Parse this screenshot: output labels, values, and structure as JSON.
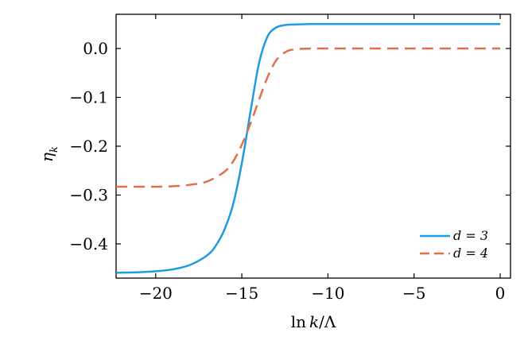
{
  "chart_data": {
    "type": "line",
    "title": "",
    "xlabel": "ln k/Λ",
    "ylabel": "η_k",
    "xlim": [
      -22.3,
      0.6
    ],
    "ylim": [
      -0.47,
      0.07
    ],
    "x_ticks": [
      -20,
      -15,
      -10,
      -5,
      0
    ],
    "x_tick_labels": [
      "−20",
      "−15",
      "−10",
      "−5",
      "0"
    ],
    "y_ticks": [
      0.0,
      -0.1,
      -0.2,
      -0.3,
      -0.4
    ],
    "y_tick_labels": [
      "0.0",
      "−0.1",
      "−0.2",
      "−0.3",
      "−0.4"
    ],
    "grid": false,
    "legend_position": "bottom-right",
    "series": [
      {
        "name": "d = 3",
        "color": "#1f9be0",
        "dash": "solid",
        "x": [
          -22.3,
          -21,
          -20,
          -19,
          -18,
          -17,
          -16.5,
          -16,
          -15.5,
          -15,
          -14.5,
          -14,
          -13.5,
          -13,
          -12.5,
          -12,
          -11,
          -10,
          -5,
          0
        ],
        "y": [
          -0.459,
          -0.458,
          -0.456,
          -0.452,
          -0.443,
          -0.423,
          -0.403,
          -0.37,
          -0.318,
          -0.235,
          -0.13,
          -0.03,
          0.025,
          0.043,
          0.048,
          0.049,
          0.05,
          0.05,
          0.05,
          0.05
        ]
      },
      {
        "name": "d = 4",
        "color": "#e0704a",
        "dash": "dashed",
        "x": [
          -22.3,
          -20,
          -19,
          -18,
          -17,
          -16,
          -15.5,
          -15,
          -14.5,
          -14,
          -13.5,
          -13,
          -12.5,
          -12,
          -11,
          -10,
          -5,
          0
        ],
        "y": [
          -0.283,
          -0.283,
          -0.282,
          -0.279,
          -0.272,
          -0.252,
          -0.231,
          -0.197,
          -0.154,
          -0.105,
          -0.058,
          -0.024,
          -0.008,
          -0.002,
          0.0,
          0.0,
          0.0,
          0.0
        ]
      }
    ]
  }
}
